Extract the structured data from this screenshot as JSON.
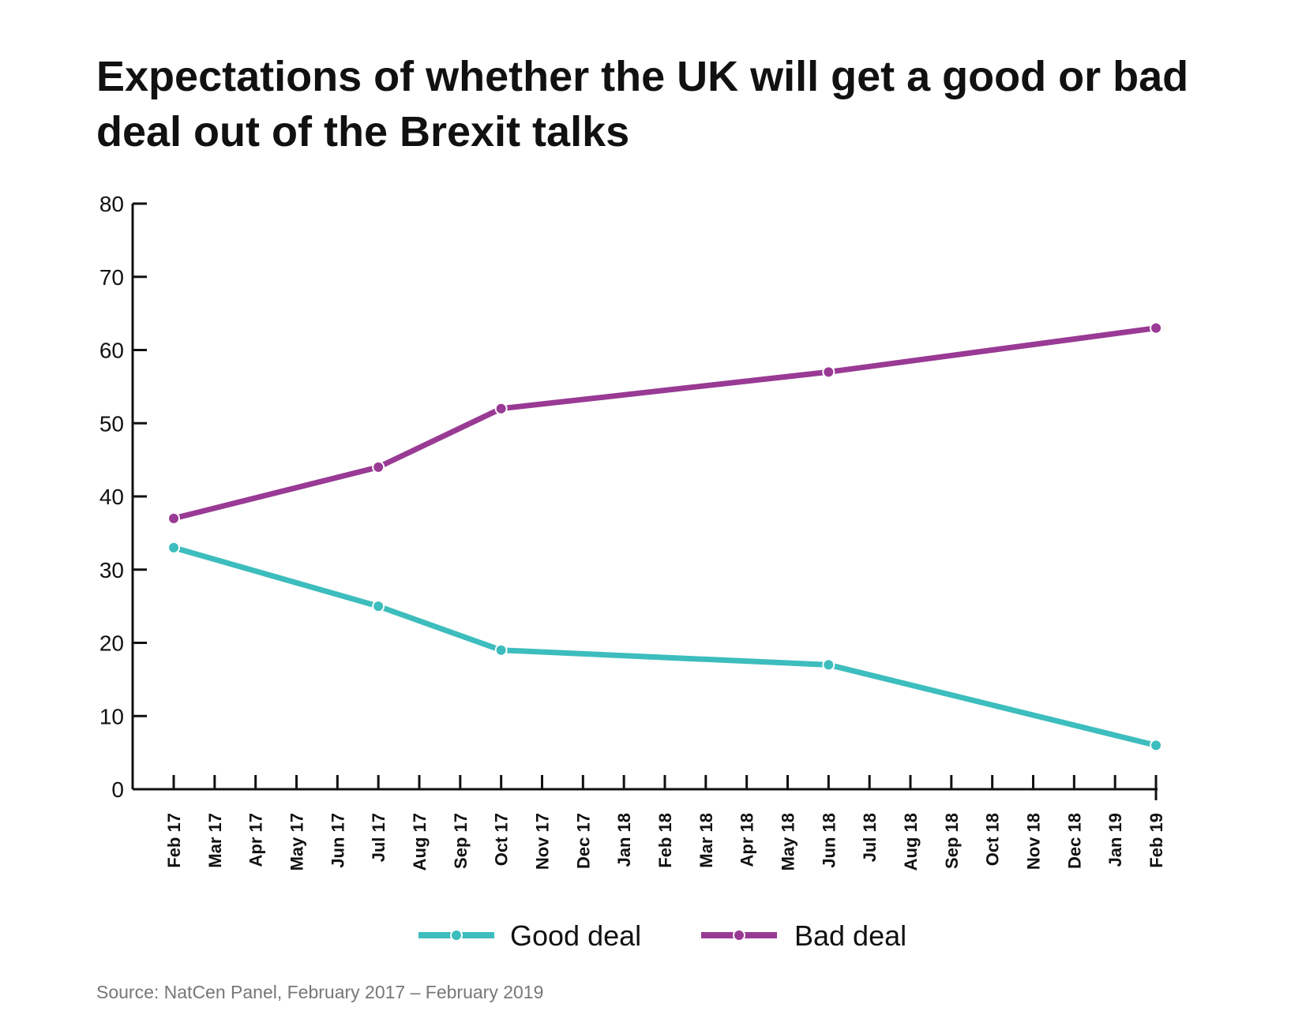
{
  "chart_data": {
    "type": "line",
    "title": "Expectations of whether the UK will get a good or bad deal out of the Brexit talks",
    "categories": [
      "Feb 17",
      "Mar 17",
      "Apr 17",
      "May 17",
      "Jun 17",
      "Jul 17",
      "Aug 17",
      "Sep 17",
      "Oct 17",
      "Nov 17",
      "Dec 17",
      "Jan 18",
      "Feb 18",
      "Mar 18",
      "Apr 18",
      "May 18",
      "Jun 18",
      "Jul 18",
      "Aug 18",
      "Sep 18",
      "Oct 18",
      "Nov 18",
      "Dec 18",
      "Jan 19",
      "Feb 19"
    ],
    "series": [
      {
        "name": "Good deal",
        "color": "#3dbdbd",
        "points": [
          {
            "x": "Feb 17",
            "y": 33
          },
          {
            "x": "Jul 17",
            "y": 25
          },
          {
            "x": "Oct 17",
            "y": 19
          },
          {
            "x": "Jun 18",
            "y": 17
          },
          {
            "x": "Feb 19",
            "y": 6
          }
        ]
      },
      {
        "name": "Bad deal",
        "color": "#993a94",
        "points": [
          {
            "x": "Feb 17",
            "y": 37
          },
          {
            "x": "Jul 17",
            "y": 44
          },
          {
            "x": "Oct 17",
            "y": 52
          },
          {
            "x": "Jun 18",
            "y": 57
          },
          {
            "x": "Feb 19",
            "y": 63
          }
        ]
      }
    ],
    "ylim": [
      0,
      80
    ],
    "yticks": [
      0,
      10,
      20,
      30,
      40,
      50,
      60,
      70,
      80
    ],
    "grid": false,
    "legend_position": "bottom"
  },
  "source": "Source: NatCen Panel, February 2017 – February 2019"
}
